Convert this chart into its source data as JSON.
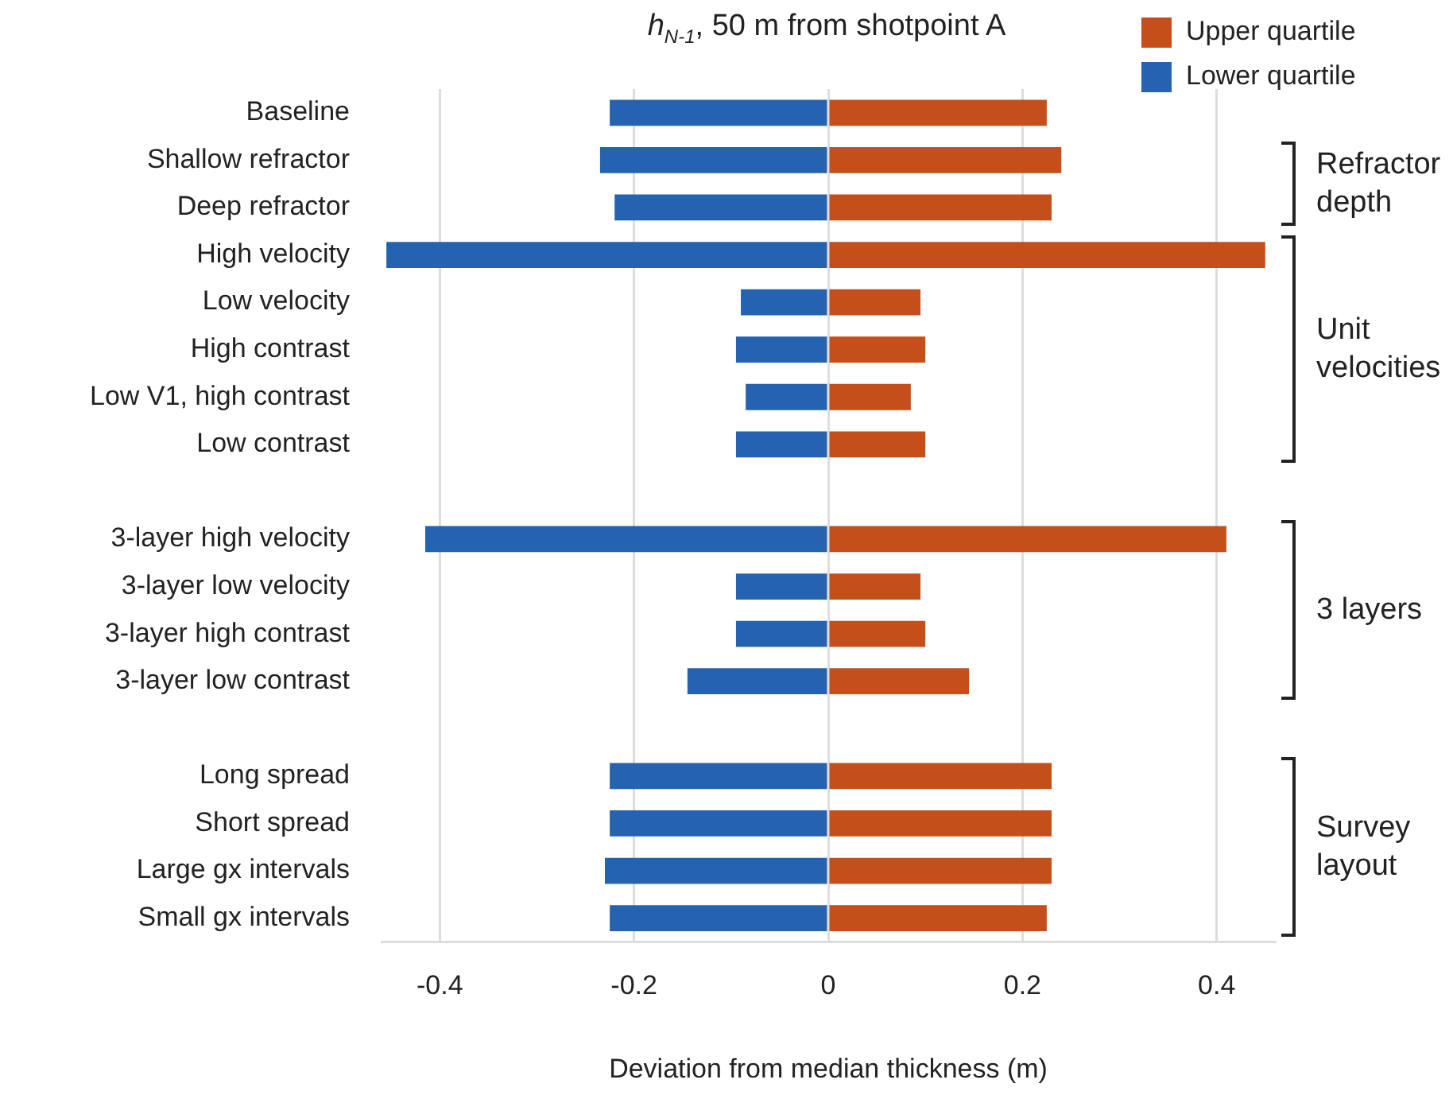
{
  "chart_data": {
    "type": "bar",
    "orientation": "horizontal",
    "stacked": true,
    "title": "h$_{N-1}$, 50 m from shotpoint A",
    "xlabel": "Deviation from median thickness (m)",
    "categories": [
      "Baseline",
      "Shallow refractor",
      "Deep refractor",
      "High velocity",
      "Low velocity",
      "High contrast",
      "Low V1, high contrast",
      "Low contrast",
      null,
      "3-layer high velocity",
      "3-layer low velocity",
      "3-layer high contrast",
      "3-layer low contrast",
      null,
      "Long spread",
      "Short spread",
      "Large gx intervals",
      "Small gx intervals"
    ],
    "series": [
      {
        "name": "Upper quartile",
        "color": "#c44f1b",
        "values": [
          0.225,
          0.24,
          0.23,
          0.45,
          0.095,
          0.1,
          0.085,
          0.1,
          null,
          0.41,
          0.095,
          0.1,
          0.145,
          null,
          0.23,
          0.23,
          0.23,
          0.225
        ]
      },
      {
        "name": "Lower quartile",
        "color": "#2563b0",
        "values": [
          -0.225,
          -0.235,
          -0.22,
          -0.455,
          -0.09,
          -0.095,
          -0.085,
          -0.095,
          null,
          -0.415,
          -0.095,
          -0.095,
          -0.145,
          null,
          -0.225,
          -0.225,
          -0.23,
          -0.225
        ]
      }
    ],
    "xlim": [
      -0.46,
      0.46
    ],
    "xticks": [
      -0.4,
      -0.2,
      0,
      0.2,
      0.4
    ],
    "grid": "x",
    "legend": "top right",
    "annotations": [
      "Refractor depth",
      "Unit velocities",
      "3 layers",
      "Survey layout"
    ]
  }
}
